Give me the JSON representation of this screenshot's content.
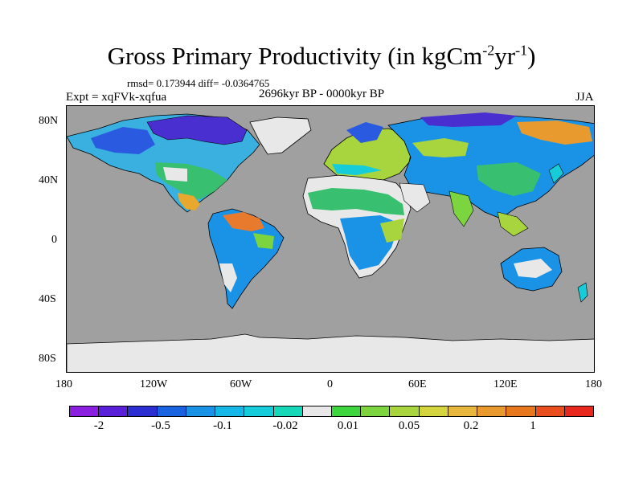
{
  "title": {
    "main": "Gross Primary Productivity (in kgCm",
    "sup1": "-2",
    "mid": "yr",
    "sup2": "-1",
    "end": ")"
  },
  "stats": "rmsd= 0.173944 diff= -0.0364765",
  "expt": "Expt = xqFVk-xqfua",
  "period": "2696kyr BP - 0000kyr BP",
  "season": "JJA",
  "map": {
    "ocean_color": "#a0a0a0",
    "ice_color": "#e8e8e8",
    "lat_ticks": [
      "80N",
      "40N",
      "0",
      "40S",
      "80S"
    ],
    "lon_ticks": [
      "180",
      "120W",
      "60W",
      "0",
      "60E",
      "120E",
      "180"
    ]
  },
  "colorbar": {
    "colors": [
      "#8a1fe0",
      "#5a1fd8",
      "#2b2fd2",
      "#1a63e0",
      "#1a93e6",
      "#16b8e8",
      "#16ccd8",
      "#16d8b8",
      "#e8e8e8",
      "#3ed43e",
      "#7cd43e",
      "#a8d43e",
      "#d4d43e",
      "#e8b83e",
      "#e89a2e",
      "#e8781e",
      "#e84e1e",
      "#e8281e"
    ],
    "labels": [
      "-2",
      "-0.5",
      "-0.1",
      "-0.02",
      "0.01",
      "0.05",
      "0.2",
      "1"
    ]
  }
}
